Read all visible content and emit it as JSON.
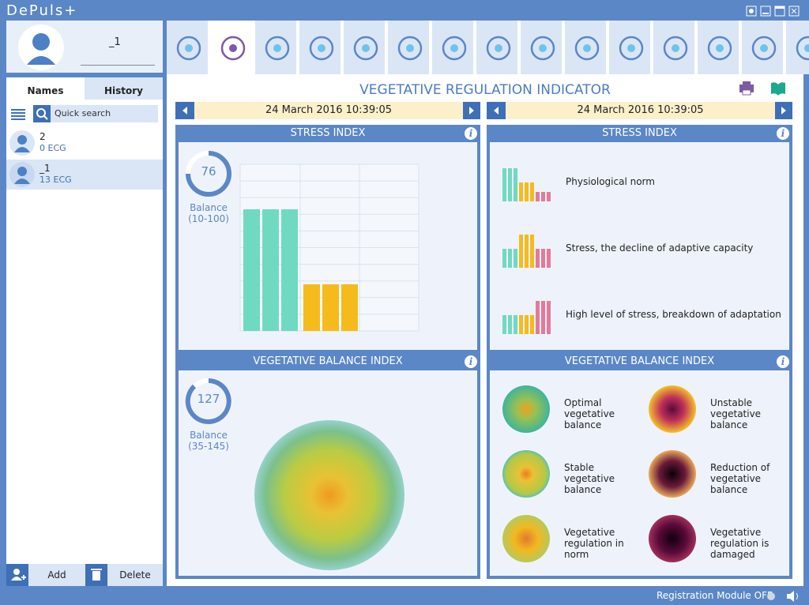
{
  "app": {
    "title": "DePuls+"
  },
  "user": {
    "name": "_1"
  },
  "tabs": [
    "Names",
    "History"
  ],
  "search_placeholder": "Quick search",
  "patients": [
    {
      "name": "2",
      "records": "0 ECG"
    },
    {
      "name": "_1",
      "records": "13 ECG"
    }
  ],
  "buttons": {
    "add": "Add",
    "delete": "Delete"
  },
  "page_title": "VEGETATIVE REGULATION INDICATOR",
  "dates": [
    "24 March 2016 10:39:05",
    "24 March 2016 10:39:05"
  ],
  "stress_index": {
    "title": "STRESS INDEX",
    "gauge": {
      "value": 76,
      "label": "Balance",
      "range": "(10-100)"
    },
    "chart": {
      "type": "bar",
      "values": [
        7.3,
        7.3,
        7.3,
        2.8,
        2.8,
        2.8
      ],
      "colors": [
        "#6fd9c2",
        "#6fd9c2",
        "#6fd9c2",
        "#f5bb1c",
        "#f5bb1c",
        "#f5bb1c"
      ],
      "ylim": [
        0,
        10
      ],
      "yticks": [
        0,
        1,
        2,
        3,
        4,
        5,
        6,
        7,
        8,
        9,
        10
      ]
    }
  },
  "stress_legend": {
    "title": "STRESS INDEX",
    "items": [
      "Physiological norm",
      "Stress, the decline of adaptive capacity",
      "High level of stress, breakdown of adaptation"
    ]
  },
  "balance_index": {
    "title": "VEGETATIVE BALANCE INDEX",
    "gauge": {
      "value": 127,
      "label": "Balance",
      "range": "(35-145)"
    }
  },
  "balance_legend": {
    "title": "VEGETATIVE BALANCE INDEX",
    "items": [
      "Optimal vegetative balance",
      "Unstable vegetative balance",
      "Stable vegetative balance",
      "Reduction of vegetative balance",
      "Vegetative regulation in norm",
      "Vegetative regulation is damaged"
    ]
  },
  "status": "Registration Module OFF"
}
